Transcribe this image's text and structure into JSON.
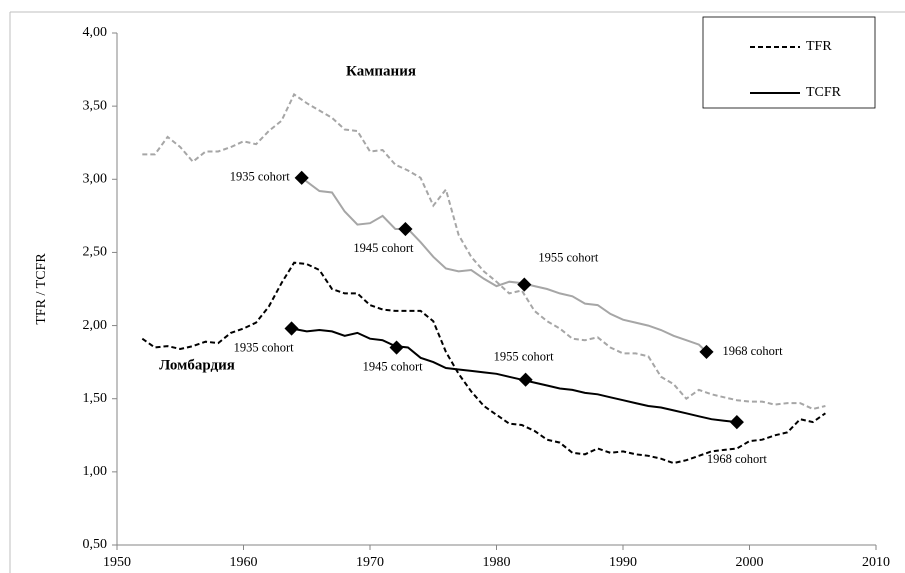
{
  "chart_data": {
    "type": "line",
    "ylabel": "TFR / TCFR",
    "xlim": [
      1950,
      2010
    ],
    "xticks": [
      1950,
      1960,
      1970,
      1980,
      1990,
      2000,
      2010
    ],
    "ylim": [
      0.5,
      4.0
    ],
    "yticks": [
      {
        "value": 0.5,
        "label": "0,50"
      },
      {
        "value": 1.0,
        "label": "1,00"
      },
      {
        "value": 1.5,
        "label": "1,50"
      },
      {
        "value": 2.0,
        "label": "2,00"
      },
      {
        "value": 2.5,
        "label": "2,50"
      },
      {
        "value": 3.0,
        "label": "3,00"
      },
      {
        "value": 3.5,
        "label": "3,50"
      },
      {
        "value": 4.0,
        "label": "4,00"
      }
    ],
    "legend": [
      {
        "name": "TFR",
        "dash": true,
        "color": "#000000"
      },
      {
        "name": "TCFR",
        "dash": false,
        "color": "#000000"
      }
    ],
    "regions": [
      "Кампания",
      "Ломбардия"
    ],
    "series": [
      {
        "region": 0,
        "measure": 0,
        "color": "#a6a6a6",
        "dash": true,
        "x": [
          1952,
          1953,
          1954,
          1955,
          1956,
          1957,
          1958,
          1959,
          1960,
          1961,
          1962,
          1963,
          1964,
          1965,
          1966,
          1967,
          1968,
          1969,
          1970,
          1971,
          1972,
          1973,
          1974,
          1975,
          1976,
          1977,
          1978,
          1979,
          1980,
          1981,
          1982,
          1983,
          1984,
          1985,
          1986,
          1987,
          1988,
          1989,
          1990,
          1991,
          1992,
          1993,
          1994,
          1995,
          1996,
          1997,
          1998,
          1999,
          2000,
          2001,
          2002,
          2003,
          2004,
          2005,
          2006
        ],
        "values": [
          3.17,
          3.17,
          3.29,
          3.22,
          3.12,
          3.19,
          3.19,
          3.22,
          3.26,
          3.24,
          3.33,
          3.4,
          3.58,
          3.52,
          3.47,
          3.42,
          3.34,
          3.33,
          3.19,
          3.2,
          3.1,
          3.06,
          3.01,
          2.82,
          2.93,
          2.62,
          2.47,
          2.37,
          2.3,
          2.22,
          2.24,
          2.1,
          2.03,
          1.98,
          1.91,
          1.9,
          1.92,
          1.85,
          1.81,
          1.81,
          1.79,
          1.65,
          1.6,
          1.5,
          1.56,
          1.53,
          1.51,
          1.49,
          1.48,
          1.48,
          1.46,
          1.47,
          1.47,
          1.43,
          1.45
        ]
      },
      {
        "region": 0,
        "measure": 1,
        "color": "#a6a6a6",
        "dash": false,
        "x": [
          1964.6,
          1966,
          1967,
          1968,
          1969,
          1970,
          1971,
          1972,
          1973,
          1974,
          1975,
          1976,
          1977,
          1978,
          1979,
          1980,
          1981,
          1982,
          1983,
          1984,
          1985,
          1986,
          1987,
          1988,
          1989,
          1990,
          1991,
          1992,
          1993,
          1994,
          1995,
          1996,
          1996.6
        ],
        "values": [
          3.01,
          2.92,
          2.91,
          2.78,
          2.69,
          2.7,
          2.75,
          2.66,
          2.66,
          2.57,
          2.47,
          2.39,
          2.37,
          2.38,
          2.32,
          2.27,
          2.3,
          2.29,
          2.27,
          2.25,
          2.22,
          2.2,
          2.15,
          2.14,
          2.08,
          2.04,
          2.02,
          2.0,
          1.97,
          1.93,
          1.9,
          1.87,
          1.82
        ]
      },
      {
        "region": 1,
        "measure": 0,
        "color": "#000000",
        "dash": true,
        "x": [
          1952,
          1953,
          1954,
          1955,
          1956,
          1957,
          1958,
          1959,
          1960,
          1961,
          1962,
          1963,
          1964,
          1965,
          1966,
          1967,
          1968,
          1969,
          1970,
          1971,
          1972,
          1973,
          1974,
          1975,
          1976,
          1977,
          1978,
          1979,
          1980,
          1981,
          1982,
          1983,
          1984,
          1985,
          1986,
          1987,
          1988,
          1989,
          1990,
          1991,
          1992,
          1993,
          1994,
          1995,
          1996,
          1997,
          1998,
          1999,
          2000,
          2001,
          2002,
          2003,
          2004,
          2005,
          2006
        ],
        "values": [
          1.91,
          1.85,
          1.86,
          1.84,
          1.86,
          1.89,
          1.88,
          1.95,
          1.98,
          2.02,
          2.13,
          2.29,
          2.43,
          2.42,
          2.38,
          2.25,
          2.22,
          2.22,
          2.14,
          2.11,
          2.1,
          2.1,
          2.1,
          2.03,
          1.82,
          1.67,
          1.55,
          1.45,
          1.39,
          1.33,
          1.32,
          1.28,
          1.22,
          1.2,
          1.13,
          1.12,
          1.16,
          1.13,
          1.14,
          1.12,
          1.11,
          1.09,
          1.06,
          1.08,
          1.11,
          1.14,
          1.15,
          1.16,
          1.21,
          1.22,
          1.25,
          1.27,
          1.36,
          1.34,
          1.4
        ]
      },
      {
        "region": 1,
        "measure": 1,
        "color": "#000000",
        "dash": false,
        "x": [
          1963.8,
          1965,
          1966,
          1967,
          1968,
          1969,
          1970,
          1971,
          1972,
          1973,
          1974,
          1975,
          1976,
          1977,
          1978,
          1979,
          1980,
          1981,
          1982,
          1983,
          1984,
          1985,
          1986,
          1987,
          1988,
          1989,
          1990,
          1991,
          1992,
          1993,
          1994,
          1995,
          1996,
          1997,
          1998,
          1999
        ],
        "values": [
          1.98,
          1.96,
          1.97,
          1.96,
          1.93,
          1.95,
          1.91,
          1.9,
          1.86,
          1.85,
          1.78,
          1.75,
          1.71,
          1.7,
          1.69,
          1.68,
          1.67,
          1.65,
          1.63,
          1.61,
          1.59,
          1.57,
          1.56,
          1.54,
          1.53,
          1.51,
          1.49,
          1.47,
          1.45,
          1.44,
          1.42,
          1.4,
          1.38,
          1.36,
          1.35,
          1.34
        ]
      }
    ],
    "markers": [
      {
        "x": 1964.6,
        "y": 3.01,
        "label": "1935 cohort"
      },
      {
        "x": 1972.8,
        "y": 2.66,
        "label": "1945 cohort"
      },
      {
        "x": 1982.2,
        "y": 2.28,
        "label": "1955 cohort"
      },
      {
        "x": 1996.6,
        "y": 1.82,
        "label": "1968 cohort"
      },
      {
        "x": 1963.8,
        "y": 1.98,
        "label": "1935 cohort"
      },
      {
        "x": 1972.1,
        "y": 1.85,
        "label": "1945 cohort"
      },
      {
        "x": 1982.3,
        "y": 1.63,
        "label": "1955 cohort"
      },
      {
        "x": 1999.0,
        "y": 1.34,
        "label": "1968 cohort"
      }
    ]
  }
}
